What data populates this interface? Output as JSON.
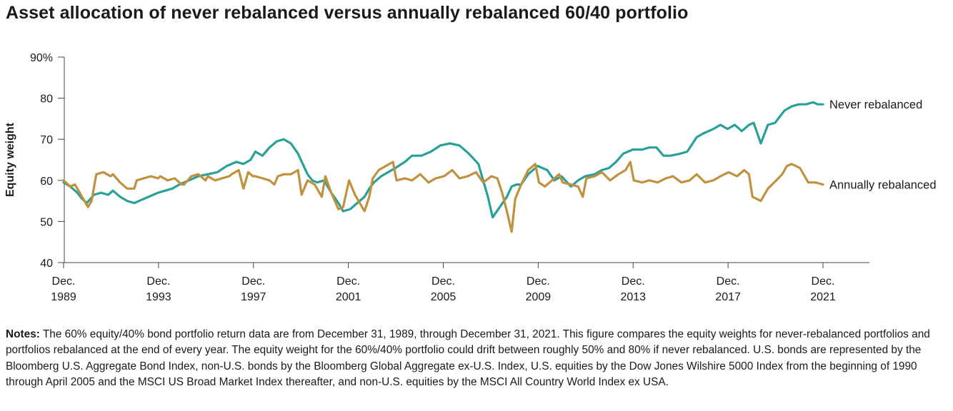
{
  "chart_data": {
    "type": "line",
    "title": "Asset allocation of never rebalanced versus annually rebalanced 60/40 portfolio",
    "ylabel": "Equity weight",
    "xlabel": "",
    "ylim": [
      40,
      90
    ],
    "xlim": [
      1989.92,
      2021.92
    ],
    "y_ticks": [
      {
        "value": 90,
        "label": "90%"
      },
      {
        "value": 80,
        "label": "80"
      },
      {
        "value": 70,
        "label": "70"
      },
      {
        "value": 60,
        "label": "60"
      },
      {
        "value": 50,
        "label": "50"
      },
      {
        "value": 40,
        "label": "40"
      }
    ],
    "x_ticks": [
      {
        "value": 1989.92,
        "line1": "Dec.",
        "line2": "1989"
      },
      {
        "value": 1993.92,
        "line1": "Dec.",
        "line2": "1993"
      },
      {
        "value": 1997.92,
        "line1": "Dec.",
        "line2": "1997"
      },
      {
        "value": 2001.92,
        "line1": "Dec.",
        "line2": "2001"
      },
      {
        "value": 2005.92,
        "line1": "Dec.",
        "line2": "2005"
      },
      {
        "value": 2009.92,
        "line1": "Dec.",
        "line2": "2009"
      },
      {
        "value": 2013.92,
        "line1": "Dec.",
        "line2": "2013"
      },
      {
        "value": 2017.92,
        "line1": "Dec.",
        "line2": "2017"
      },
      {
        "value": 2021.92,
        "line1": "Dec.",
        "line2": "2021"
      }
    ],
    "series": [
      {
        "name": "Never rebalanced",
        "color": "#2aa198",
        "x": [
          1989.92,
          1990.2,
          1990.5,
          1990.7,
          1990.9,
          1991.2,
          1991.5,
          1991.8,
          1992.0,
          1992.3,
          1992.6,
          1992.9,
          1993.3,
          1993.7,
          1993.9,
          1994.2,
          1994.5,
          1994.8,
          1995.2,
          1995.6,
          1996.0,
          1996.4,
          1996.8,
          1997.2,
          1997.5,
          1997.8,
          1998.0,
          1998.3,
          1998.6,
          1998.9,
          1999.2,
          1999.5,
          1999.8,
          2000.0,
          2000.2,
          2000.4,
          2000.6,
          2000.9,
          2001.2,
          2001.5,
          2001.7,
          2002.0,
          2002.3,
          2002.6,
          2002.8,
          2003.0,
          2003.3,
          2003.6,
          2003.9,
          2004.3,
          2004.6,
          2005.0,
          2005.4,
          2005.8,
          2006.2,
          2006.6,
          2007.0,
          2007.4,
          2007.6,
          2007.8,
          2008.0,
          2008.3,
          2008.6,
          2008.8,
          2009.0,
          2009.2,
          2009.5,
          2009.9,
          2010.3,
          2010.6,
          2010.9,
          2011.3,
          2011.6,
          2011.9,
          2012.3,
          2012.6,
          2012.9,
          2013.2,
          2013.5,
          2013.9,
          2014.3,
          2014.6,
          2014.9,
          2015.2,
          2015.5,
          2015.9,
          2016.2,
          2016.6,
          2016.9,
          2017.3,
          2017.6,
          2017.9,
          2018.2,
          2018.5,
          2018.8,
          2019.0,
          2019.3,
          2019.6,
          2019.9,
          2020.1,
          2020.3,
          2020.6,
          2020.9,
          2021.2,
          2021.5,
          2021.7,
          2021.92
        ],
        "values": [
          59.5,
          58.5,
          57.0,
          55.5,
          54.5,
          56.5,
          57.0,
          56.5,
          57.5,
          56.0,
          55.0,
          54.5,
          55.5,
          56.5,
          57.0,
          57.5,
          58.0,
          59.0,
          60.0,
          61.0,
          61.5,
          62.0,
          63.5,
          64.5,
          64.0,
          65.0,
          67.0,
          66.0,
          68.0,
          69.5,
          70.0,
          69.0,
          66.5,
          64.0,
          61.5,
          60.0,
          59.5,
          60.0,
          57.0,
          54.5,
          52.5,
          53.0,
          54.5,
          56.0,
          58.0,
          59.5,
          61.0,
          62.0,
          63.0,
          64.5,
          66.0,
          66.0,
          67.0,
          68.5,
          69.0,
          68.5,
          66.5,
          64.0,
          60.0,
          56.0,
          51.0,
          53.5,
          56.0,
          58.5,
          59.0,
          59.0,
          61.5,
          63.5,
          62.5,
          60.0,
          61.0,
          58.5,
          60.0,
          61.0,
          61.5,
          62.5,
          63.0,
          64.5,
          66.5,
          67.5,
          67.5,
          68.0,
          68.0,
          66.0,
          66.0,
          66.5,
          67.0,
          70.5,
          71.5,
          72.5,
          73.5,
          72.5,
          73.5,
          72.0,
          73.5,
          74.0,
          69.0,
          73.5,
          74.0,
          75.5,
          77.0,
          78.0,
          78.5,
          78.5,
          79.0,
          78.5,
          78.5
        ]
      },
      {
        "name": "Annually rebalanced",
        "color": "#c0913e",
        "x": [
          1989.92,
          1990.2,
          1990.4,
          1990.6,
          1990.8,
          1990.95,
          1991.1,
          1991.3,
          1991.6,
          1991.9,
          1992.0,
          1992.3,
          1992.6,
          1992.9,
          1993.0,
          1993.3,
          1993.6,
          1993.9,
          1994.0,
          1994.3,
          1994.6,
          1994.9,
          1995.0,
          1995.3,
          1995.6,
          1995.9,
          1996.0,
          1996.3,
          1996.6,
          1996.9,
          1997.0,
          1997.3,
          1997.5,
          1997.7,
          1997.9,
          1998.0,
          1998.3,
          1998.6,
          1998.8,
          1998.95,
          1999.2,
          1999.5,
          1999.8,
          1999.95,
          2000.2,
          2000.5,
          2000.8,
          2000.95,
          2001.2,
          2001.5,
          2001.7,
          2001.95,
          2002.2,
          2002.4,
          2002.6,
          2002.8,
          2002.95,
          2003.2,
          2003.5,
          2003.8,
          2003.95,
          2004.3,
          2004.6,
          2004.95,
          2005.3,
          2005.6,
          2005.95,
          2006.3,
          2006.6,
          2006.95,
          2007.3,
          2007.6,
          2007.95,
          2008.2,
          2008.4,
          2008.6,
          2008.8,
          2008.95,
          2009.2,
          2009.5,
          2009.8,
          2009.95,
          2010.2,
          2010.5,
          2010.8,
          2010.95,
          2011.3,
          2011.6,
          2011.8,
          2011.95,
          2012.3,
          2012.6,
          2012.95,
          2013.3,
          2013.6,
          2013.8,
          2013.95,
          2014.3,
          2014.6,
          2014.95,
          2015.3,
          2015.6,
          2015.95,
          2016.3,
          2016.6,
          2016.95,
          2017.3,
          2017.6,
          2017.95,
          2018.3,
          2018.6,
          2018.8,
          2018.95,
          2019.3,
          2019.6,
          2019.95,
          2020.2,
          2020.4,
          2020.6,
          2020.95,
          2021.3,
          2021.6,
          2021.92
        ],
        "values": [
          60.0,
          58.5,
          59.0,
          57.0,
          55.0,
          53.5,
          55.0,
          61.5,
          62.0,
          61.0,
          61.5,
          59.5,
          58.0,
          58.0,
          60.0,
          60.5,
          61.0,
          60.5,
          61.0,
          60.0,
          60.5,
          59.0,
          59.0,
          61.0,
          61.5,
          60.0,
          61.0,
          60.0,
          60.5,
          61.0,
          61.5,
          62.5,
          58.0,
          62.0,
          61.0,
          61.0,
          60.5,
          60.0,
          59.0,
          61.0,
          61.5,
          61.5,
          62.5,
          56.5,
          60.0,
          59.0,
          56.0,
          61.0,
          57.0,
          53.0,
          53.5,
          60.0,
          56.5,
          54.5,
          52.5,
          56.0,
          60.5,
          62.5,
          63.5,
          64.5,
          60.0,
          60.5,
          60.0,
          61.5,
          59.5,
          60.5,
          61.0,
          62.5,
          60.5,
          61.0,
          62.0,
          59.5,
          61.0,
          60.5,
          57.0,
          52.5,
          47.5,
          55.5,
          59.0,
          62.5,
          64.0,
          59.5,
          58.5,
          60.0,
          61.5,
          59.5,
          59.0,
          58.5,
          56.0,
          60.5,
          61.0,
          62.0,
          60.0,
          61.5,
          62.5,
          64.5,
          60.0,
          59.5,
          60.0,
          59.5,
          60.5,
          61.0,
          59.5,
          60.0,
          61.5,
          59.5,
          60.0,
          61.0,
          62.0,
          61.0,
          62.5,
          61.5,
          56.0,
          55.0,
          58.0,
          60.0,
          61.5,
          63.5,
          64.0,
          63.0,
          59.5,
          59.5,
          59.0
        ]
      }
    ],
    "annotations": [
      "Never rebalanced",
      "Annually rebalanced"
    ],
    "grid": false,
    "legend": "inline-right"
  },
  "notes": {
    "label": "Notes:",
    "text": " The 60% equity/40% bond portfolio return data are from December 31, 1989, through December 31, 2021. This figure compares the equity weights for never-rebalanced portfolios and portfolios rebalanced at the end of every year. The equity weight for the 60%/40% portfolio could drift between roughly 50% and 80% if never rebalanced. U.S. bonds are represented by the Bloomberg U.S. Aggregate Bond Index, non-U.S. bonds by the Bloomberg Global Aggregate ex-U.S. Index, U.S. equities by the Dow Jones Wilshire 5000 Index from the beginning of 1990 through April 2005 and the MSCI US Broad Market Index thereafter, and non-U.S. equities by the MSCI All Country World Index ex USA."
  }
}
